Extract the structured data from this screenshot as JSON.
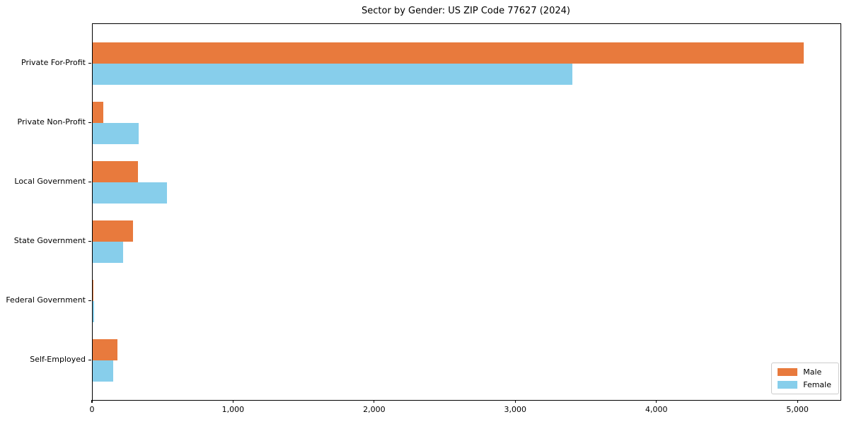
{
  "chart_data": {
    "type": "bar",
    "orientation": "horizontal",
    "title": "Sector by Gender: US ZIP Code 77627 (2024)",
    "xlabel": "",
    "ylabel": "",
    "categories": [
      "Private For-Profit",
      "Private Non-Profit",
      "Local Government",
      "State Government",
      "Federal Government",
      "Self-Employed"
    ],
    "series": [
      {
        "name": "Male",
        "color": "#e87a3d",
        "values": [
          5040,
          75,
          320,
          285,
          5,
          175
        ]
      },
      {
        "name": "Female",
        "color": "#87ceeb",
        "values": [
          3400,
          325,
          525,
          215,
          12,
          145
        ]
      }
    ],
    "xlim": [
      0,
      5300
    ],
    "xticks": {
      "values": [
        0,
        1000,
        2000,
        3000,
        4000,
        5000
      ],
      "labels": [
        "0",
        "1,000",
        "2,000",
        "3,000",
        "4,000",
        "5,000"
      ]
    },
    "grid": false,
    "legend_position": "lower right",
    "background_color": "#ffffff",
    "frame_color": "#000000"
  }
}
